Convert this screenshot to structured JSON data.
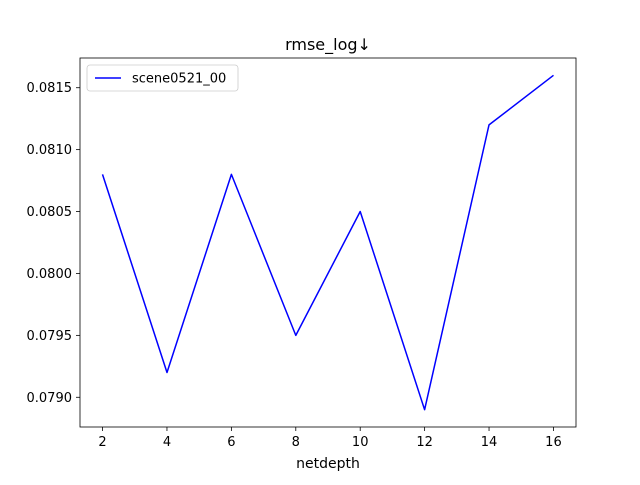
{
  "chart_data": {
    "type": "line",
    "title": "rmse_log↓",
    "xlabel": "netdepth",
    "ylabel": "",
    "x": [
      2,
      4,
      6,
      8,
      10,
      12,
      14,
      16
    ],
    "series": [
      {
        "name": "scene0521_00",
        "color": "#0000ff",
        "values": [
          0.0808,
          0.0792,
          0.0808,
          0.0795,
          0.0805,
          0.0789,
          0.0812,
          0.0816
        ]
      }
    ],
    "xlim": [
      1.3,
      16.7
    ],
    "ylim": [
      0.07876,
      0.08174
    ],
    "xticks": [
      "2",
      "4",
      "6",
      "8",
      "10",
      "12",
      "14",
      "16"
    ],
    "yticks": [
      "0.0790",
      "0.0795",
      "0.0800",
      "0.0805",
      "0.0810",
      "0.0815"
    ],
    "grid": false,
    "legend_position": "top-left"
  }
}
